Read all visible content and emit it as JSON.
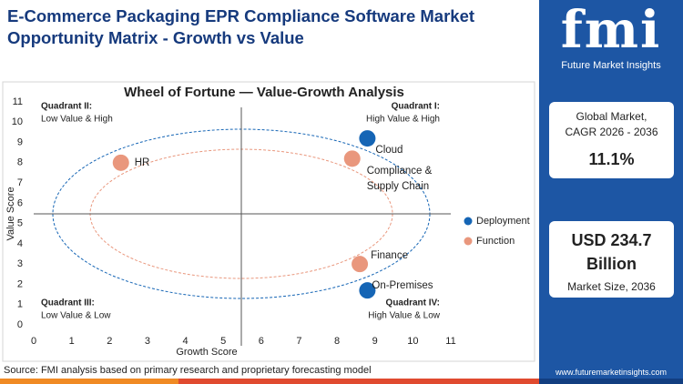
{
  "header": {
    "title": "E-Commerce Packaging EPR Compliance Software Market Opportunity Matrix - Growth vs Value"
  },
  "chart_data": {
    "type": "scatter",
    "title": "Wheel of Fortune — Value-Growth Analysis",
    "xlabel": "Growth Score",
    "ylabel": "Value Score",
    "xlim": [
      0,
      11
    ],
    "ylim": [
      0,
      11
    ],
    "xticks": [
      0,
      1,
      2,
      3,
      4,
      5,
      6,
      7,
      8,
      9,
      10,
      11
    ],
    "yticks": [
      0,
      1,
      2,
      3,
      4,
      5,
      6,
      7,
      8,
      9,
      10,
      11
    ],
    "series": [
      {
        "name": "Deployment",
        "color": "#1565b5",
        "x": [
          8.8,
          8.8
        ],
        "y": [
          9.2,
          1.7
        ],
        "labels": [
          "Cloud",
          "On-Premises"
        ]
      },
      {
        "name": "Function",
        "color": "#e9977d",
        "x": [
          2.3,
          8.4,
          8.6
        ],
        "y": [
          8.0,
          8.2,
          3.0
        ],
        "labels": [
          "HR",
          "Compliance & Supply Chain",
          "Finance"
        ]
      }
    ],
    "quadrants": [
      {
        "name": "Quadrant II:",
        "text": "Low Value & High"
      },
      {
        "name": "Quadrant I:",
        "text": "High Value & High"
      },
      {
        "name": "Quadrant III:",
        "text": "Low Value & Low"
      },
      {
        "name": "Quadrant IV:",
        "text": "High Value & Low"
      }
    ]
  },
  "sidebar": {
    "logo": "fmi",
    "brand": "Future Market Insights",
    "stat1": {
      "label": "Global Market, CAGR 2026 - 2036",
      "value": "11.1%"
    },
    "stat2": {
      "value": "USD 234.7 Billion",
      "label": "Market Size, 2036"
    }
  },
  "footer": {
    "source": "Source: FMI analysis based on primary research and proprietary forecasting model",
    "website": "www.futuremarketinsights.com"
  }
}
